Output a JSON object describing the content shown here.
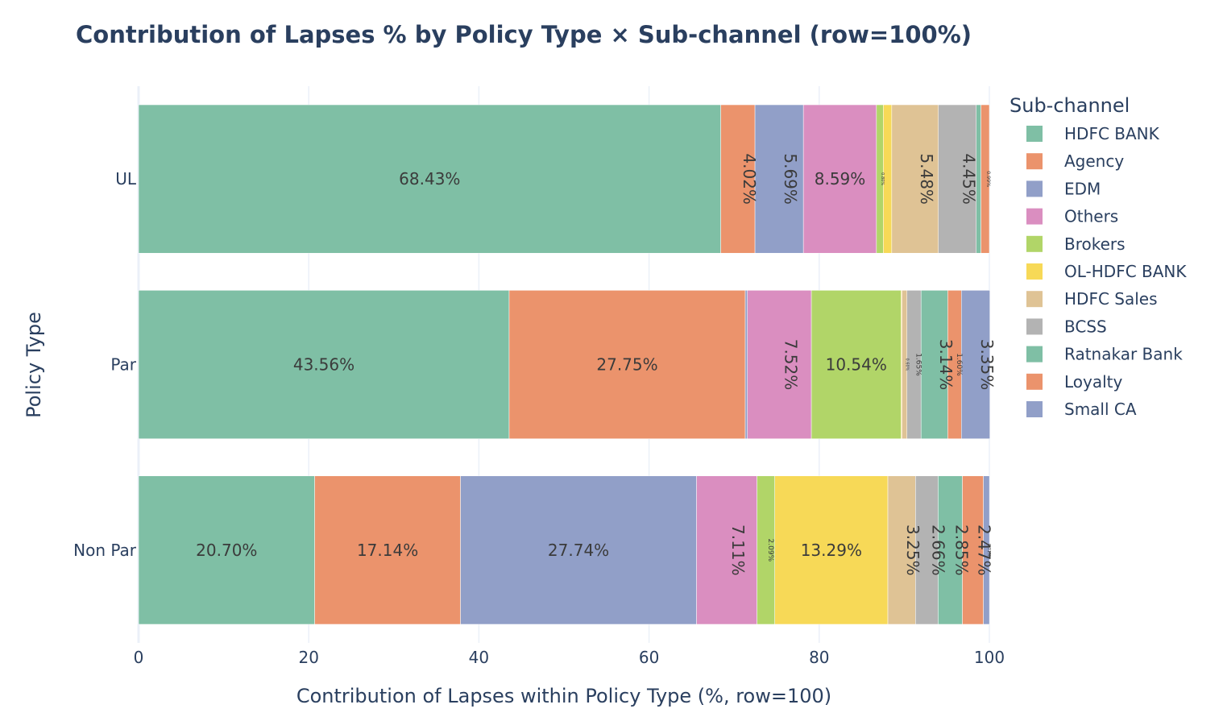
{
  "chart_data": {
    "type": "bar",
    "orientation": "horizontal",
    "barmode": "stack",
    "title": "Contribution of Lapses % by Policy Type × Sub-channel (row=100%)",
    "xlabel": "Contribution of Lapses within Policy Type (%, row=100)",
    "ylabel": "Policy Type",
    "xlim": [
      0,
      100
    ],
    "xticks": [
      "0",
      "20",
      "40",
      "60",
      "80",
      "100"
    ],
    "categories": [
      "UL",
      "Par",
      "Non Par"
    ],
    "legend_title": "Sub-channel",
    "legend_position": "right",
    "grid": true,
    "series": [
      {
        "name": "HDFC BANK",
        "color": "#7fbfa5",
        "values": [
          68.43,
          43.56,
          20.7
        ],
        "labels": [
          "68.43%",
          "43.56%",
          "20.70%"
        ]
      },
      {
        "name": "Agency",
        "color": "#eb936c",
        "values": [
          4.02,
          27.75,
          17.14
        ],
        "labels": [
          "4.02%",
          "27.75%",
          "17.14%"
        ]
      },
      {
        "name": "EDM",
        "color": "#919fc8",
        "values": [
          5.69,
          0.25,
          27.74
        ],
        "labels": [
          "5.69%",
          "",
          "27.74%"
        ]
      },
      {
        "name": "Others",
        "color": "#da8ec0",
        "values": [
          8.59,
          7.52,
          7.11
        ],
        "labels": [
          "8.59%",
          "7.52%",
          "7.11%"
        ]
      },
      {
        "name": "Brokers",
        "color": "#b1d568",
        "values": [
          0.8,
          10.54,
          2.09
        ],
        "labels": [
          "0.80%",
          "10.54%",
          "2.09%"
        ]
      },
      {
        "name": "OL-HDFC BANK",
        "color": "#f7d957",
        "values": [
          1.0,
          0.1,
          13.29
        ],
        "labels": [
          "",
          "",
          "13.29%"
        ]
      },
      {
        "name": "HDFC Sales",
        "color": "#dfc395",
        "values": [
          5.48,
          0.6,
          3.25
        ],
        "labels": [
          "5.48%",
          "0.60%",
          "3.25%"
        ]
      },
      {
        "name": "BCSS",
        "color": "#b3b3b3",
        "values": [
          4.45,
          1.65,
          2.66
        ],
        "labels": [
          "4.45%",
          "1.65%",
          "2.66%"
        ]
      },
      {
        "name": "Ratnakar Bank",
        "color": "#7fbfa5",
        "values": [
          0.55,
          3.14,
          2.85
        ],
        "labels": [
          "",
          "3.14%",
          "2.85%"
        ]
      },
      {
        "name": "Loyalty",
        "color": "#eb936c",
        "values": [
          0.99,
          1.6,
          2.47
        ],
        "labels": [
          "0.99%",
          "1.60%",
          "2.47%"
        ]
      },
      {
        "name": "Small CA",
        "color": "#919fc8",
        "values": [
          0.0,
          3.35,
          0.71
        ],
        "labels": [
          "",
          "3.35%",
          "0.71%"
        ]
      }
    ]
  }
}
